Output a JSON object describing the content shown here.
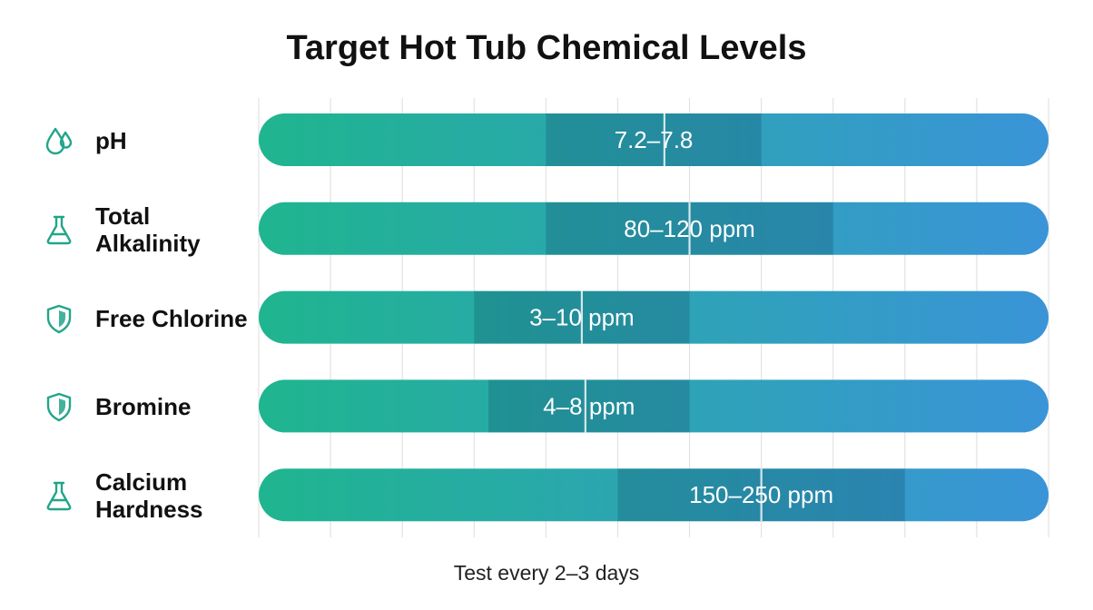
{
  "title": "Target Hot Tub Chemical Levels",
  "footer": "Test every 2–3 days",
  "colors": {
    "bar_start": "#1fb58f",
    "bar_end": "#3a94d8",
    "grid": "#e2e2e2"
  },
  "rows": [
    {
      "label": "pH",
      "icon": "water-drops-icon",
      "range_label": "7.2–7.8"
    },
    {
      "label": "Total Alkalinity",
      "icon": "flask-icon",
      "range_label": "80–120 ppm"
    },
    {
      "label": "Free Chlorine",
      "icon": "shield-icon",
      "range_label": "3–10 ppm"
    },
    {
      "label": "Bromine",
      "icon": "shield-icon",
      "range_label": "4–8 ppm"
    },
    {
      "label": "Calcium Hardness",
      "icon": "flask-icon",
      "range_label": "150–250 ppm"
    }
  ],
  "chart_data": {
    "type": "bar",
    "title": "Target Hot Tub Chemical Levels",
    "note": "Test every 2–3 days",
    "x_axis": {
      "min": 0,
      "max": 11,
      "tick_labels_shown": false
    },
    "grid": true,
    "series": [
      {
        "categories": [
          "pH",
          "Total Alkalinity",
          "Free Chlorine",
          "Bromine",
          "Calcium Hardness"
        ],
        "bars": [
          {
            "start": 4,
            "end": 7,
            "marker": 5.65,
            "label": "7.2–7.8"
          },
          {
            "start": 4,
            "end": 8,
            "marker": 6.0,
            "label": "80–120 ppm"
          },
          {
            "start": 3,
            "end": 6,
            "marker": 4.5,
            "label": "3–10 ppm"
          },
          {
            "start": 3.2,
            "end": 6,
            "marker": 4.55,
            "label": "4–8 ppm"
          },
          {
            "start": 5,
            "end": 9,
            "marker": 7.0,
            "label": "150–250 ppm"
          }
        ]
      }
    ]
  }
}
